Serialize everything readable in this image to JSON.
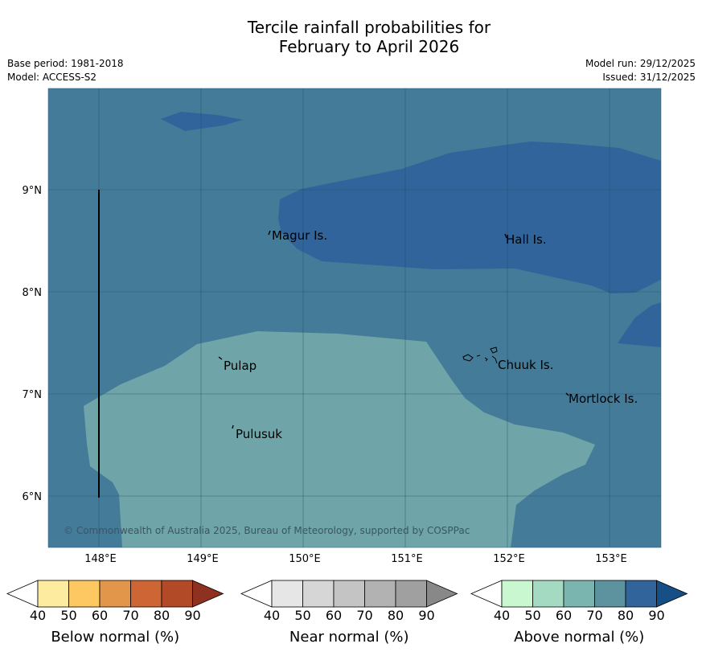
{
  "title_line1": "Tercile rainfall probabilities for",
  "title_line2": "February to April 2026",
  "meta": {
    "base_period": "Base period: 1981-2018",
    "model": "Model: ACCESS-S2",
    "model_run": "Model run: 29/12/2025",
    "issued": "Issued: 31/12/2025"
  },
  "map": {
    "lon_labels": [
      "148°E",
      "149°E",
      "150°E",
      "151°E",
      "152°E",
      "153°E"
    ],
    "lat_labels": [
      "9°N",
      "8°N",
      "7°N",
      "6°N"
    ],
    "places": [
      "Magur Is.",
      "Hall Is.",
      "Pulap",
      "Chuuk Is.",
      "Mortlock Is.",
      "Pulusuk"
    ],
    "copyright": "© Commonwealth of Australia 2025, Bureau of Meteorology, supported by COSPPac",
    "colors": {
      "above_70": "#447b99",
      "above_80": "#31649a",
      "near_or_low": "#6fa4a8"
    }
  },
  "legends": [
    {
      "label": "Below normal (%)",
      "ticks": [
        "40",
        "50",
        "60",
        "70",
        "80",
        "90"
      ],
      "colors": [
        "#fdeba0",
        "#fdc861",
        "#e2964a",
        "#cd6535",
        "#b34a27",
        "#8e3120"
      ]
    },
    {
      "label": "Near normal (%)",
      "ticks": [
        "40",
        "50",
        "60",
        "70",
        "80",
        "90"
      ],
      "colors": [
        "#e6e6e6",
        "#d6d6d6",
        "#c4c4c4",
        "#b2b2b2",
        "#a0a0a0",
        "#888888"
      ]
    },
    {
      "label": "Above normal (%)",
      "ticks": [
        "40",
        "50",
        "60",
        "70",
        "80",
        "90"
      ],
      "colors": [
        "#c8f7d0",
        "#a4dac2",
        "#7bb5af",
        "#5d929f",
        "#31649a",
        "#154f85"
      ]
    }
  ]
}
